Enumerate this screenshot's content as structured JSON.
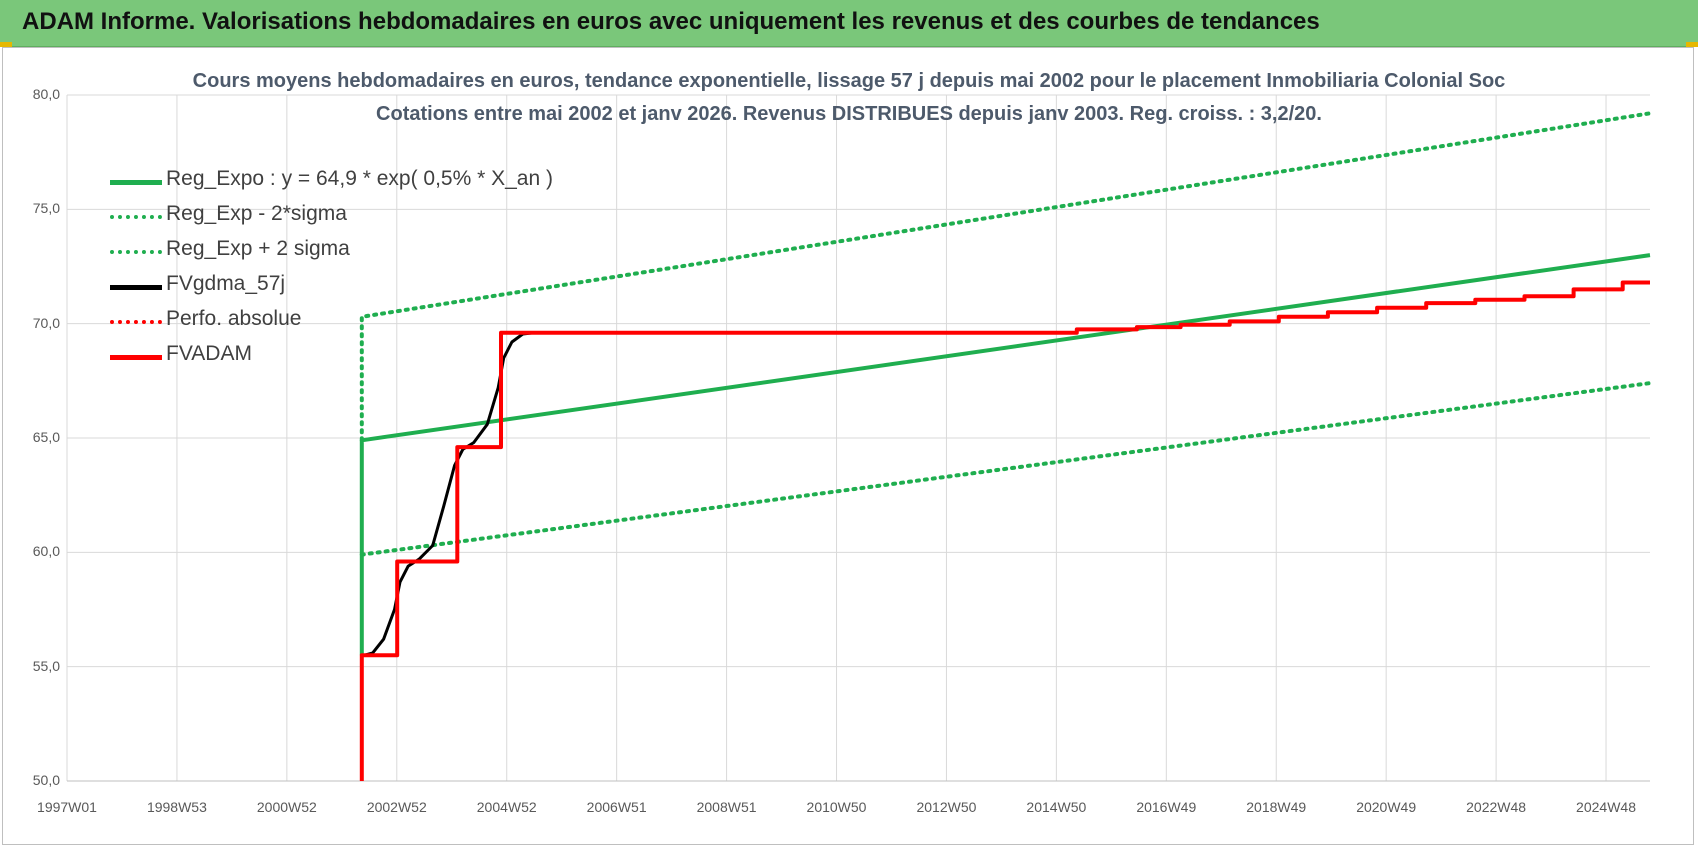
{
  "banner": {
    "title": "ADAM Informe. Valorisations hebdomadaires en euros avec uniquement les revenus et des courbes de tendances"
  },
  "colors": {
    "banner_bg": "#7ac77a",
    "green": "#1fae4f",
    "red": "#ff0000",
    "black": "#000000",
    "grid": "#d9d9d9"
  },
  "chart_data": {
    "type": "line",
    "title_line1": "Cours moyens hebdomadaires en euros, tendance exponentielle, lissage 57 j depuis mai 2002 pour le placement Inmobiliaria Colonial Soc",
    "title_line2": "Cotations entre mai 2002 et janv 2026. Revenus DISTRIBUES depuis janv 2003. Reg. croiss. : 3,2/20.",
    "ylim": [
      50,
      80
    ],
    "xlim": [
      1997.0,
      2026.0
    ],
    "yticks": [
      "50,0",
      "55,0",
      "60,0",
      "65,0",
      "70,0",
      "75,0",
      "80,0"
    ],
    "xticks": [
      "1997W01",
      "1998W53",
      "2000W52",
      "2002W52",
      "2004W52",
      "2006W51",
      "2008W51",
      "2010W50",
      "2012W50",
      "2014W50",
      "2016W49",
      "2018W49",
      "2020W49",
      "2022W48",
      "2024W48"
    ],
    "grid": true,
    "legend_position": "top-left",
    "series": [
      {
        "name": "Reg_Expo : y = 64,9 * exp( 0,5% *  X_an )",
        "style": "solid",
        "color": "#1fae4f",
        "x": [
          2002.4,
          2002.4,
          2026.0
        ],
        "y": [
          55.5,
          64.9,
          73.0
        ]
      },
      {
        "name": "Reg_Exp - 2*sigma",
        "style": "dotted",
        "color": "#1fae4f",
        "x": [
          2002.4,
          2026.0
        ],
        "y": [
          59.9,
          67.4
        ]
      },
      {
        "name": "Reg_Exp + 2 sigma",
        "style": "dotted",
        "color": "#1fae4f",
        "x": [
          2002.4,
          2002.4,
          2026.0
        ],
        "y": [
          64.9,
          70.3,
          79.2
        ]
      },
      {
        "name": "FVgdma_57j",
        "style": "solid",
        "color": "#000000",
        "x": [
          2002.45,
          2002.6,
          2002.8,
          2003.0,
          2003.1,
          2003.25,
          2003.45,
          2003.7,
          2003.9,
          2004.1,
          2004.25,
          2004.45,
          2004.7,
          2004.9,
          2005.0,
          2005.15,
          2005.35,
          2005.55,
          2005.75,
          2006.0
        ],
        "y": [
          55.5,
          55.6,
          56.2,
          57.5,
          58.7,
          59.4,
          59.7,
          60.3,
          62.0,
          63.8,
          64.5,
          64.8,
          65.6,
          67.2,
          68.5,
          69.2,
          69.55,
          69.6,
          69.6,
          69.6
        ]
      },
      {
        "name": "Perfo. absolue",
        "style": "dotted",
        "color": "#ff0000",
        "x": [],
        "y": []
      },
      {
        "name": "FVADAM",
        "style": "solid",
        "color": "#ff0000",
        "x": [
          2002.4,
          2002.4,
          2003.05,
          2003.05,
          2004.15,
          2004.15,
          2004.95,
          2004.95,
          2015.5,
          2015.5,
          2016.6,
          2016.6,
          2017.4,
          2017.4,
          2018.3,
          2018.3,
          2019.2,
          2019.2,
          2020.1,
          2020.1,
          2021.0,
          2021.0,
          2021.9,
          2021.9,
          2022.8,
          2022.8,
          2023.7,
          2023.7,
          2024.6,
          2024.6,
          2025.5,
          2025.5,
          2026.0
        ],
        "y": [
          50.0,
          55.5,
          55.5,
          59.6,
          59.6,
          64.6,
          64.6,
          69.6,
          69.6,
          69.75,
          69.75,
          69.85,
          69.85,
          69.95,
          69.95,
          70.1,
          70.1,
          70.3,
          70.3,
          70.5,
          70.5,
          70.7,
          70.7,
          70.9,
          70.9,
          71.05,
          71.05,
          71.2,
          71.2,
          71.5,
          71.5,
          71.8,
          71.8
        ]
      }
    ]
  }
}
